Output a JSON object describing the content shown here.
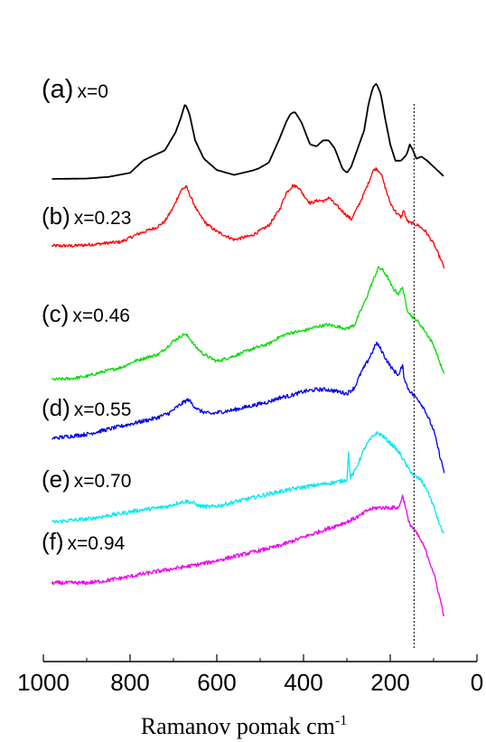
{
  "chart_data": {
    "type": "line",
    "xlabel": "Ramanov pomak cm",
    "xlabel_sup": "-1",
    "xlim": [
      1000,
      0
    ],
    "x_ticks": [
      1000,
      800,
      600,
      400,
      200,
      0
    ],
    "x_tick_labels": [
      "1000",
      "800",
      "600",
      "400",
      "200",
      "0"
    ],
    "reference_line_x": 145,
    "series": [
      {
        "name": "x=0",
        "tag": "(a)",
        "color": "#000000",
        "noise": 0,
        "points": [
          [
            980,
            0.0
          ],
          [
            900,
            0.01
          ],
          [
            850,
            0.05
          ],
          [
            800,
            0.15
          ],
          [
            770,
            0.45
          ],
          [
            745,
            0.58
          ],
          [
            720,
            0.7
          ],
          [
            695,
            1.15
          ],
          [
            683,
            1.5
          ],
          [
            673,
            1.85
          ],
          [
            663,
            1.6
          ],
          [
            650,
            0.95
          ],
          [
            630,
            0.5
          ],
          [
            600,
            0.22
          ],
          [
            560,
            0.1
          ],
          [
            520,
            0.2
          ],
          [
            505,
            0.25
          ],
          [
            480,
            0.4
          ],
          [
            455,
            1.0
          ],
          [
            440,
            1.4
          ],
          [
            430,
            1.6
          ],
          [
            420,
            1.65
          ],
          [
            405,
            1.4
          ],
          [
            385,
            0.85
          ],
          [
            370,
            0.8
          ],
          [
            355,
            0.95
          ],
          [
            342,
            0.95
          ],
          [
            328,
            0.75
          ],
          [
            310,
            0.25
          ],
          [
            300,
            0.15
          ],
          [
            290,
            0.3
          ],
          [
            275,
            0.75
          ],
          [
            260,
            1.2
          ],
          [
            250,
            1.85
          ],
          [
            240,
            2.25
          ],
          [
            232,
            2.35
          ],
          [
            222,
            2.1
          ],
          [
            212,
            1.5
          ],
          [
            200,
            0.85
          ],
          [
            188,
            0.45
          ],
          [
            175,
            0.45
          ],
          [
            162,
            0.6
          ],
          [
            155,
            0.85
          ],
          [
            148,
            0.72
          ],
          [
            140,
            0.5
          ],
          [
            128,
            0.55
          ],
          [
            115,
            0.45
          ],
          [
            100,
            0.3
          ],
          [
            85,
            0.15
          ],
          [
            75,
            0.05
          ]
        ]
      },
      {
        "name": "x=0.23",
        "tag": "(b)",
        "color": "#ff0000",
        "noise": 0.04,
        "points": [
          [
            980,
            0.0
          ],
          [
            930,
            0.0
          ],
          [
            880,
            0.04
          ],
          [
            820,
            0.1
          ],
          [
            780,
            0.3
          ],
          [
            740,
            0.45
          ],
          [
            720,
            0.6
          ],
          [
            700,
            0.95
          ],
          [
            690,
            1.2
          ],
          [
            680,
            1.4
          ],
          [
            670,
            1.45
          ],
          [
            660,
            1.2
          ],
          [
            645,
            0.85
          ],
          [
            625,
            0.55
          ],
          [
            600,
            0.35
          ],
          [
            560,
            0.15
          ],
          [
            520,
            0.25
          ],
          [
            480,
            0.5
          ],
          [
            455,
            0.9
          ],
          [
            440,
            1.3
          ],
          [
            425,
            1.48
          ],
          [
            412,
            1.45
          ],
          [
            400,
            1.25
          ],
          [
            385,
            1.05
          ],
          [
            365,
            1.12
          ],
          [
            350,
            1.1
          ],
          [
            342,
            1.2
          ],
          [
            330,
            1.05
          ],
          [
            310,
            0.85
          ],
          [
            290,
            0.65
          ],
          [
            275,
            0.95
          ],
          [
            262,
            1.25
          ],
          [
            250,
            1.55
          ],
          [
            240,
            1.85
          ],
          [
            232,
            1.9
          ],
          [
            222,
            1.8
          ],
          [
            212,
            1.45
          ],
          [
            200,
            1.05
          ],
          [
            185,
            0.8
          ],
          [
            175,
            0.7
          ],
          [
            168,
            0.9
          ],
          [
            165,
            0.7
          ],
          [
            158,
            0.58
          ],
          [
            148,
            0.55
          ],
          [
            135,
            0.5
          ],
          [
            118,
            0.35
          ],
          [
            100,
            0.05
          ],
          [
            85,
            -0.3
          ],
          [
            75,
            -0.55
          ]
        ]
      },
      {
        "name": "x=0.46",
        "tag": "(c)",
        "color": "#00dd00",
        "noise": 0.04,
        "points": [
          [
            980,
            0.0
          ],
          [
            940,
            0.02
          ],
          [
            900,
            0.08
          ],
          [
            860,
            0.2
          ],
          [
            820,
            0.3
          ],
          [
            790,
            0.45
          ],
          [
            760,
            0.55
          ],
          [
            735,
            0.62
          ],
          [
            715,
            0.8
          ],
          [
            700,
            0.95
          ],
          [
            685,
            1.05
          ],
          [
            675,
            1.12
          ],
          [
            665,
            1.05
          ],
          [
            650,
            0.82
          ],
          [
            630,
            0.62
          ],
          [
            600,
            0.45
          ],
          [
            560,
            0.58
          ],
          [
            520,
            0.75
          ],
          [
            480,
            0.88
          ],
          [
            455,
            1.05
          ],
          [
            430,
            1.15
          ],
          [
            400,
            1.2
          ],
          [
            370,
            1.3
          ],
          [
            345,
            1.35
          ],
          [
            320,
            1.3
          ],
          [
            300,
            1.25
          ],
          [
            282,
            1.35
          ],
          [
            270,
            1.65
          ],
          [
            255,
            2.0
          ],
          [
            245,
            2.3
          ],
          [
            235,
            2.55
          ],
          [
            228,
            2.75
          ],
          [
            218,
            2.7
          ],
          [
            205,
            2.5
          ],
          [
            195,
            2.25
          ],
          [
            180,
            2.1
          ],
          [
            172,
            2.3
          ],
          [
            168,
            2.05
          ],
          [
            160,
            1.7
          ],
          [
            150,
            1.55
          ],
          [
            138,
            1.45
          ],
          [
            120,
            1.2
          ],
          [
            100,
            0.85
          ],
          [
            85,
            0.4
          ],
          [
            75,
            0.1
          ]
        ]
      },
      {
        "name": "x=0.55",
        "tag": "(d)",
        "color": "#0000ee",
        "noise": 0.05,
        "points": [
          [
            980,
            0.0
          ],
          [
            940,
            0.05
          ],
          [
            900,
            0.1
          ],
          [
            860,
            0.2
          ],
          [
            820,
            0.3
          ],
          [
            780,
            0.4
          ],
          [
            740,
            0.5
          ],
          [
            710,
            0.62
          ],
          [
            690,
            0.78
          ],
          [
            675,
            0.9
          ],
          [
            665,
            0.95
          ],
          [
            655,
            0.82
          ],
          [
            640,
            0.68
          ],
          [
            615,
            0.6
          ],
          [
            590,
            0.65
          ],
          [
            560,
            0.7
          ],
          [
            520,
            0.8
          ],
          [
            480,
            0.9
          ],
          [
            455,
            1.0
          ],
          [
            430,
            1.05
          ],
          [
            400,
            1.15
          ],
          [
            370,
            1.2
          ],
          [
            345,
            1.2
          ],
          [
            320,
            1.15
          ],
          [
            300,
            1.1
          ],
          [
            282,
            1.25
          ],
          [
            268,
            1.6
          ],
          [
            252,
            1.9
          ],
          [
            240,
            2.15
          ],
          [
            232,
            2.35
          ],
          [
            222,
            2.2
          ],
          [
            210,
            1.95
          ],
          [
            195,
            1.7
          ],
          [
            180,
            1.55
          ],
          [
            172,
            1.8
          ],
          [
            168,
            1.5
          ],
          [
            160,
            1.25
          ],
          [
            150,
            1.1
          ],
          [
            135,
            0.95
          ],
          [
            120,
            0.7
          ],
          [
            100,
            0.2
          ],
          [
            85,
            -0.45
          ],
          [
            75,
            -0.85
          ]
        ]
      },
      {
        "name": "x=0.70",
        "tag": "(e)",
        "color": "#00e8f0",
        "noise": 0.05,
        "points": [
          [
            980,
            0.0
          ],
          [
            940,
            0.05
          ],
          [
            900,
            0.08
          ],
          [
            860,
            0.15
          ],
          [
            820,
            0.22
          ],
          [
            780,
            0.3
          ],
          [
            740,
            0.35
          ],
          [
            710,
            0.4
          ],
          [
            690,
            0.48
          ],
          [
            670,
            0.52
          ],
          [
            655,
            0.48
          ],
          [
            640,
            0.4
          ],
          [
            615,
            0.38
          ],
          [
            590,
            0.42
          ],
          [
            560,
            0.5
          ],
          [
            520,
            0.6
          ],
          [
            480,
            0.7
          ],
          [
            445,
            0.78
          ],
          [
            410,
            0.85
          ],
          [
            380,
            0.9
          ],
          [
            350,
            0.95
          ],
          [
            320,
            1.0
          ],
          [
            300,
            1.05
          ],
          [
            296,
            1.7
          ],
          [
            292,
            1.1
          ],
          [
            282,
            1.25
          ],
          [
            270,
            1.55
          ],
          [
            258,
            1.85
          ],
          [
            245,
            2.05
          ],
          [
            232,
            2.2
          ],
          [
            220,
            2.15
          ],
          [
            205,
            2.0
          ],
          [
            190,
            1.85
          ],
          [
            175,
            1.65
          ],
          [
            160,
            1.35
          ],
          [
            145,
            1.15
          ],
          [
            130,
            1.05
          ],
          [
            115,
            0.8
          ],
          [
            100,
            0.4
          ],
          [
            85,
            -0.1
          ],
          [
            75,
            -0.3
          ]
        ]
      },
      {
        "name": "x=0.94",
        "tag": "(f)",
        "color": "#ee00ee",
        "noise": 0.05,
        "points": [
          [
            980,
            0.0
          ],
          [
            940,
            0.0
          ],
          [
            900,
            0.0
          ],
          [
            860,
            0.05
          ],
          [
            820,
            0.12
          ],
          [
            780,
            0.2
          ],
          [
            740,
            0.28
          ],
          [
            700,
            0.35
          ],
          [
            660,
            0.42
          ],
          [
            620,
            0.5
          ],
          [
            580,
            0.6
          ],
          [
            540,
            0.7
          ],
          [
            500,
            0.8
          ],
          [
            460,
            0.9
          ],
          [
            420,
            1.05
          ],
          [
            380,
            1.2
          ],
          [
            340,
            1.35
          ],
          [
            300,
            1.5
          ],
          [
            270,
            1.65
          ],
          [
            250,
            1.8
          ],
          [
            230,
            1.85
          ],
          [
            210,
            1.85
          ],
          [
            195,
            1.85
          ],
          [
            180,
            1.85
          ],
          [
            172,
            2.15
          ],
          [
            165,
            1.9
          ],
          [
            158,
            1.5
          ],
          [
            148,
            1.35
          ],
          [
            135,
            1.15
          ],
          [
            120,
            0.85
          ],
          [
            100,
            0.25
          ],
          [
            85,
            -0.4
          ],
          [
            75,
            -0.85
          ]
        ]
      }
    ]
  }
}
